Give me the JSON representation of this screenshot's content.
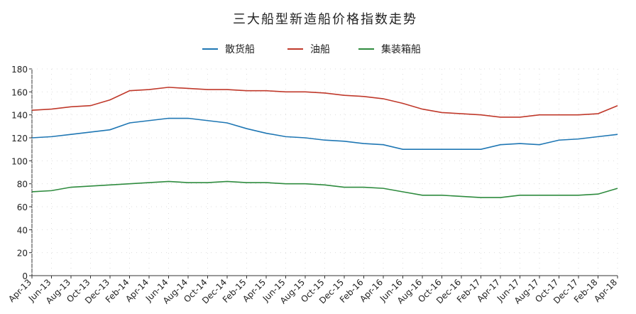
{
  "chart_data": {
    "type": "line",
    "title": "三大船型新造船价格指数走势",
    "categories": [
      "Apr-13",
      "Jun-13",
      "Aug-13",
      "Oct-13",
      "Dec-13",
      "Feb-14",
      "Apr-14",
      "Jun-14",
      "Aug-14",
      "Oct-14",
      "Dec-14",
      "Feb-15",
      "Apr-15",
      "Jun-15",
      "Aug-15",
      "Oct-15",
      "Dec-15",
      "Feb-16",
      "Apr-16",
      "Jun-16",
      "Aug-16",
      "Oct-16",
      "Dec-16",
      "Feb-17",
      "Apr-17",
      "Jun-17",
      "Aug-17",
      "Oct-17",
      "Dec-17",
      "Feb-18",
      "Apr-18"
    ],
    "series": [
      {
        "name": "散货船",
        "color": "#1f77b4",
        "values": [
          120,
          121,
          123,
          125,
          127,
          133,
          135,
          137,
          137,
          135,
          133,
          128,
          124,
          121,
          120,
          118,
          117,
          115,
          114,
          110,
          110,
          110,
          110,
          110,
          114,
          115,
          114,
          118,
          119,
          121,
          123
        ]
      },
      {
        "name": "油船",
        "color": "#c0392b",
        "values": [
          144,
          145,
          147,
          148,
          153,
          161,
          162,
          164,
          163,
          162,
          162,
          161,
          161,
          160,
          160,
          159,
          157,
          156,
          154,
          150,
          145,
          142,
          141,
          140,
          138,
          138,
          140,
          140,
          140,
          141,
          148
        ]
      },
      {
        "name": "集装箱船",
        "color": "#2e8b3e",
        "values": [
          73,
          74,
          77,
          78,
          79,
          80,
          81,
          82,
          81,
          81,
          82,
          81,
          81,
          80,
          80,
          79,
          77,
          77,
          76,
          73,
          70,
          70,
          69,
          68,
          68,
          70,
          70,
          70,
          70,
          71,
          76
        ]
      }
    ],
    "ylim": [
      0,
      180
    ],
    "yticks": [
      0,
      20,
      40,
      60,
      80,
      100,
      120,
      140,
      160,
      180
    ],
    "grid": true,
    "legend": "top"
  }
}
